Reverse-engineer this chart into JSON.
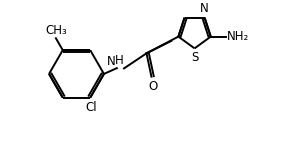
{
  "bg_color": "#ffffff",
  "line_color": "#000000",
  "line_width": 1.4,
  "font_size": 8.5,
  "xlim": [
    0,
    10.5
  ],
  "ylim": [
    0,
    5.0
  ],
  "figsize": [
    3.04,
    1.46
  ],
  "dpi": 100
}
